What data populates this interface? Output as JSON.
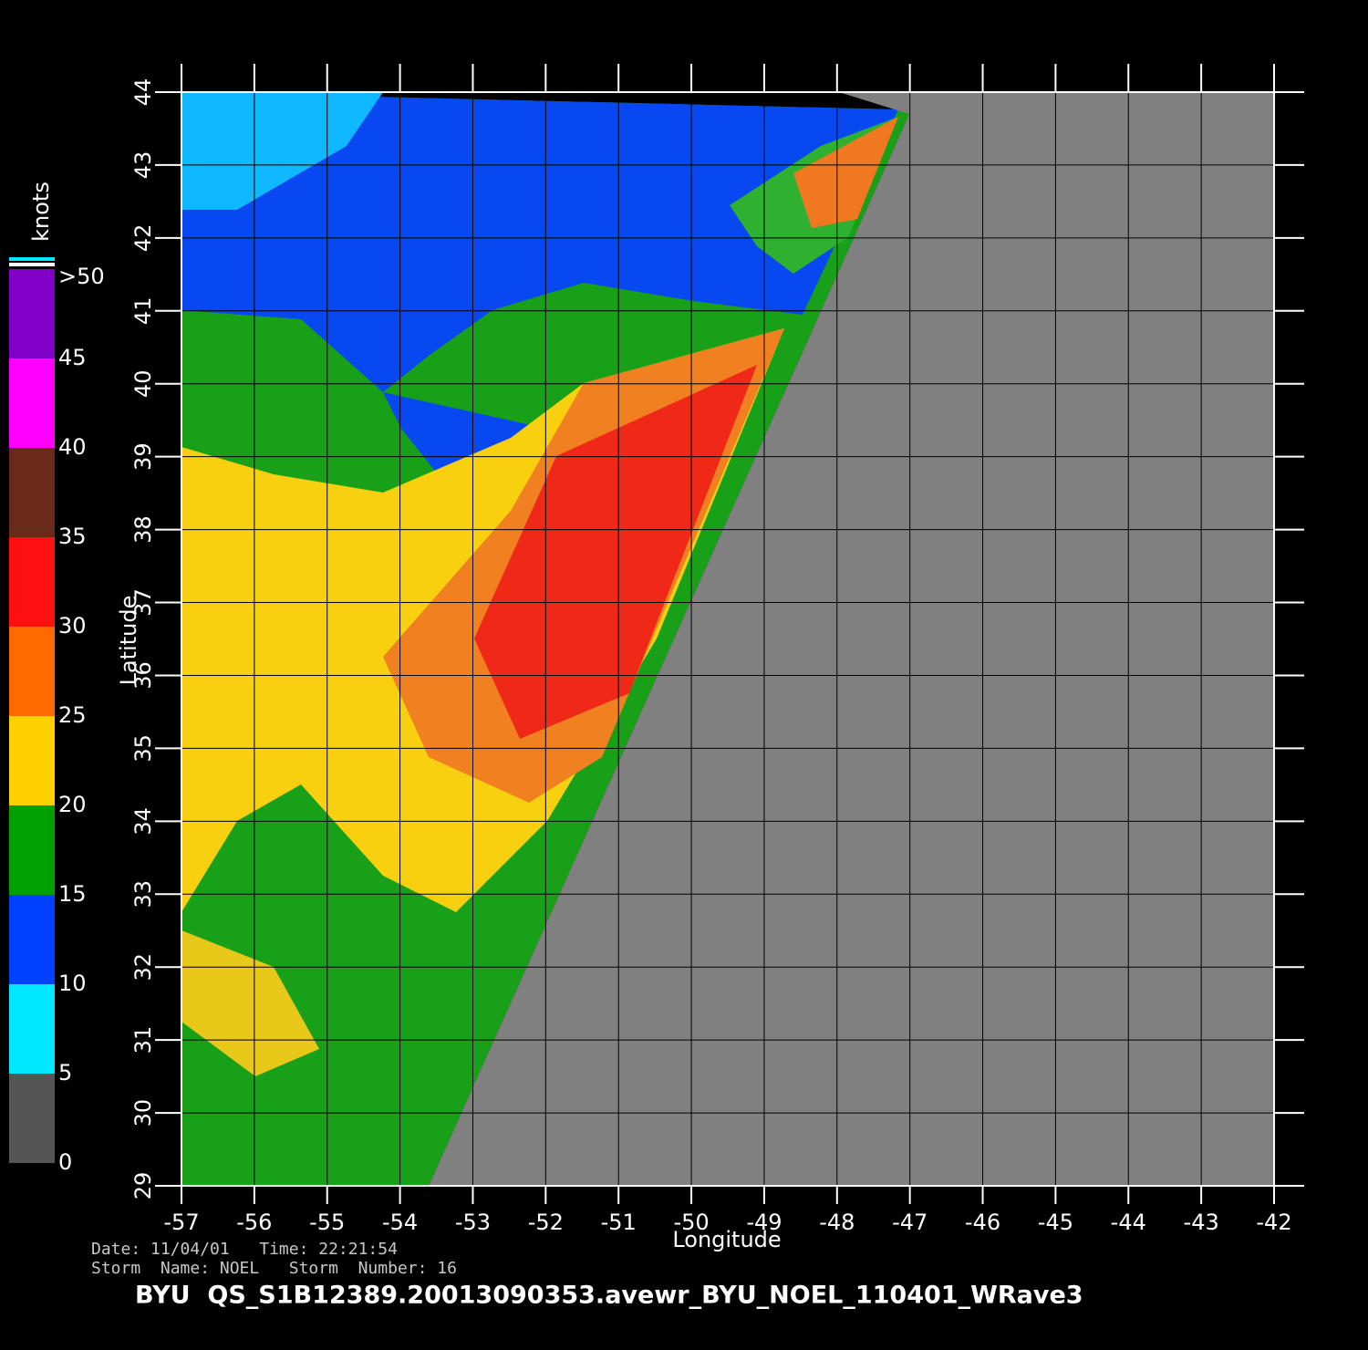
{
  "map": {
    "x_label": "Longitude",
    "y_label": "Latitude",
    "xlim": [
      -57,
      -42
    ],
    "xticks": [
      -57,
      -56,
      -55,
      -54,
      -53,
      -52,
      -51,
      -50,
      -49,
      -48,
      -47,
      -46,
      -45,
      -44,
      -43,
      -42
    ],
    "ylim": [
      29,
      44
    ],
    "yticks": [
      29,
      30,
      31,
      32,
      33,
      34,
      35,
      36,
      37,
      38,
      39,
      40,
      41,
      42,
      43,
      44
    ],
    "colorbar": {
      "unit": "knots",
      "top_label": ">50",
      "ticks": [
        0,
        5,
        10,
        15,
        20,
        25,
        30,
        35,
        40,
        45
      ],
      "lim": [
        0,
        50
      ],
      "colors": [
        "#555555",
        "#00e8ff",
        "#0040ff",
        "#00a000",
        "#ffd000",
        "#ff6a00",
        "#ff1010",
        "#6a2a1a",
        "#ff00ff",
        "#8000c8"
      ]
    }
  },
  "footer": {
    "date_line": "Date: 11/04/01   Time: 22:21:54",
    "storm_line": "Storm  Name: NOEL   Storm  Number: 16",
    "file_name": "BYU  QS_S1B12389.20013090353.avewr_BYU_NOEL_110401_WRave3"
  }
}
